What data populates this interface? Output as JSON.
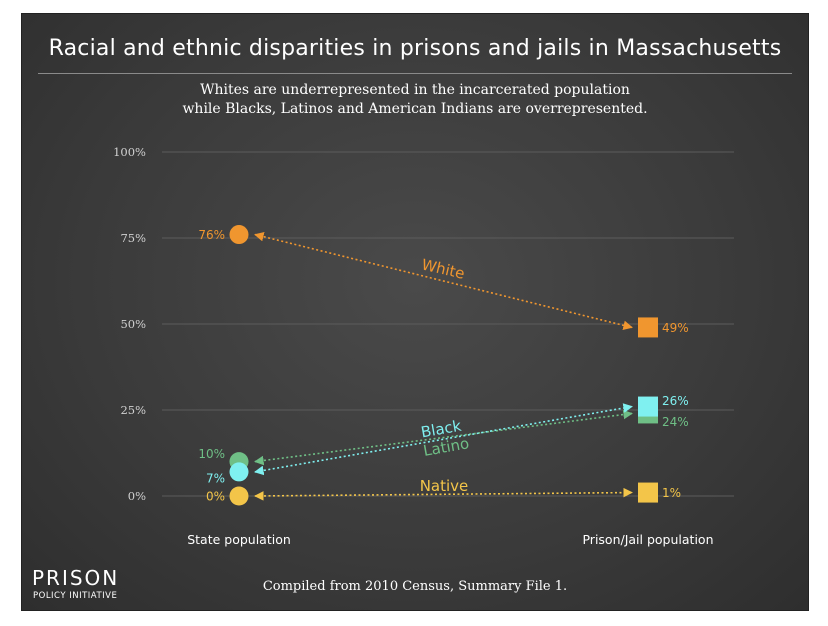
{
  "title": "Racial and ethnic disparities in prisons and jails in Massachusetts",
  "subtitle_line1": "Whites are underrepresented in the incarcerated population",
  "subtitle_line2": "while Blacks, Latinos and American Indians are overrepresented.",
  "footnote": "Compiled from 2010 Census, Summary File 1.",
  "logo": {
    "line1": "PRISON",
    "line2": "POLICY INITIATIVE"
  },
  "chart_data": {
    "type": "slope",
    "categories": [
      "State population",
      "Prison/Jail population"
    ],
    "ylim": [
      0,
      100
    ],
    "yticks": [
      "0%",
      "25%",
      "50%",
      "75%",
      "100%"
    ],
    "ytick_values": [
      0,
      25,
      50,
      75,
      100
    ],
    "grid": true,
    "series": [
      {
        "name": "White",
        "values": [
          76,
          49
        ],
        "labels": [
          "76%",
          "49%"
        ],
        "color": "#f0962f"
      },
      {
        "name": "Black",
        "values": [
          7,
          26
        ],
        "labels": [
          "7%",
          "26%"
        ],
        "color": "#7ff0f0"
      },
      {
        "name": "Latino",
        "values": [
          10,
          24
        ],
        "labels": [
          "10%",
          "24%"
        ],
        "color": "#6fbf86"
      },
      {
        "name": "Native",
        "values": [
          0,
          1
        ],
        "labels": [
          "0%",
          "1%"
        ],
        "color": "#f3c549"
      }
    ]
  }
}
